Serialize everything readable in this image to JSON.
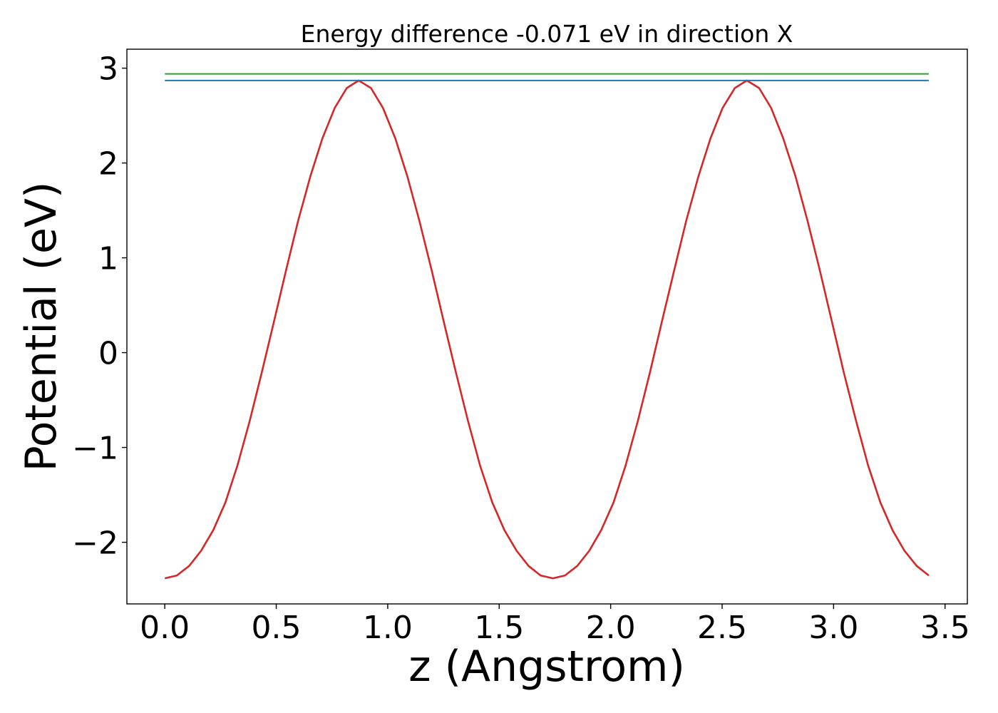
{
  "chart_data": {
    "type": "line",
    "title": "Energy difference -0.071 eV in direction X",
    "xlabel": "z (Angstrom)",
    "ylabel": "Potential (eV)",
    "xlim": [
      -0.17,
      3.6
    ],
    "ylim": [
      -2.65,
      3.2
    ],
    "xticks": [
      0.0,
      0.5,
      1.0,
      1.5,
      2.0,
      2.5,
      3.0,
      3.5
    ],
    "xtick_labels": [
      "0.0",
      "0.5",
      "1.0",
      "1.5",
      "2.0",
      "2.5",
      "3.0",
      "3.5"
    ],
    "yticks": [
      -2,
      -1,
      0,
      1,
      2,
      3
    ],
    "ytick_labels": [
      "−2",
      "−1",
      "0",
      "1",
      "2",
      "3"
    ],
    "grid": false,
    "series": [
      {
        "color": "#d62728",
        "x": [
          0.0,
          0.054,
          0.109,
          0.163,
          0.218,
          0.272,
          0.326,
          0.381,
          0.435,
          0.49,
          0.544,
          0.598,
          0.653,
          0.707,
          0.762,
          0.816,
          0.87,
          0.925,
          0.979,
          1.034,
          1.088,
          1.142,
          1.197,
          1.251,
          1.306,
          1.36,
          1.414,
          1.469,
          1.523,
          1.578,
          1.632,
          1.686,
          1.741,
          1.795,
          1.85,
          1.904,
          1.958,
          2.013,
          2.067,
          2.122,
          2.176,
          2.23,
          2.285,
          2.339,
          2.394,
          2.448,
          2.502,
          2.557,
          2.611,
          2.666,
          2.72,
          2.774,
          2.829,
          2.883,
          2.938,
          2.992,
          3.046,
          3.101,
          3.155,
          3.21,
          3.264,
          3.318,
          3.373,
          3.427
        ],
        "y": [
          -2.38,
          -2.35,
          -2.25,
          -2.09,
          -1.87,
          -1.58,
          -1.19,
          -0.72,
          -0.21,
          0.33,
          0.87,
          1.39,
          1.86,
          2.26,
          2.58,
          2.79,
          2.87,
          2.79,
          2.58,
          2.26,
          1.86,
          1.39,
          0.87,
          0.33,
          -0.21,
          -0.72,
          -1.19,
          -1.58,
          -1.87,
          -2.09,
          -2.25,
          -2.35,
          -2.38,
          -2.35,
          -2.25,
          -2.09,
          -1.87,
          -1.58,
          -1.19,
          -0.72,
          -0.21,
          0.33,
          0.87,
          1.39,
          1.86,
          2.26,
          2.58,
          2.79,
          2.87,
          2.79,
          2.58,
          2.26,
          1.86,
          1.39,
          0.87,
          0.33,
          -0.21,
          -0.72,
          -1.19,
          -1.58,
          -1.87,
          -2.09,
          -2.25,
          -2.35
        ]
      },
      {
        "color": "#1f77b4",
        "x": [
          0.0,
          3.427
        ],
        "y": [
          2.87,
          2.87
        ]
      },
      {
        "color": "#2ca02c",
        "x": [
          0.0,
          3.427
        ],
        "y": [
          2.94,
          2.94
        ]
      }
    ]
  }
}
